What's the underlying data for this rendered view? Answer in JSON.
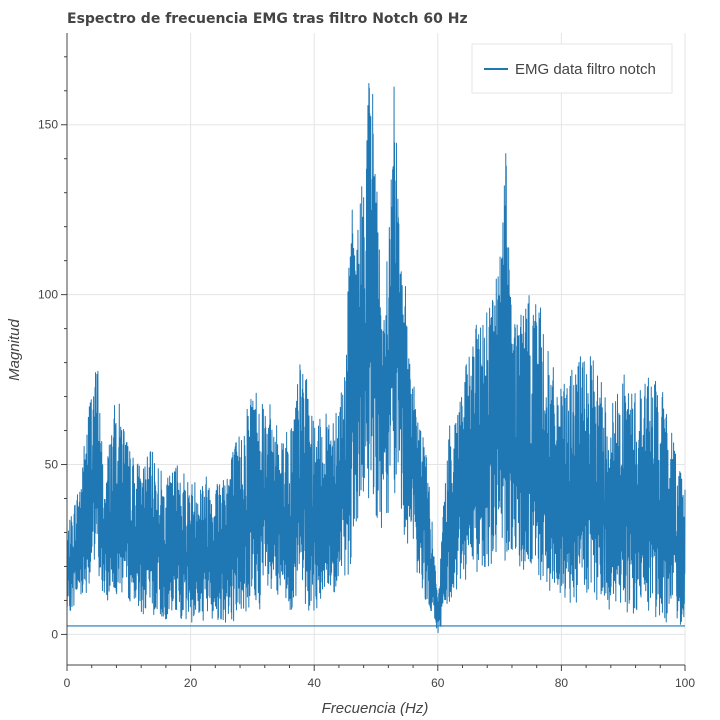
{
  "chart_data": {
    "type": "line",
    "title": "Espectro de frecuencia EMG tras filtro Notch 60 Hz",
    "xlabel": "Frecuencia (Hz)",
    "ylabel": "Magnitud",
    "xlim": [
      0,
      100
    ],
    "ylim": [
      -9,
      177
    ],
    "x_ticks": [
      0,
      20,
      40,
      60,
      80,
      100
    ],
    "y_ticks": [
      0,
      50,
      100,
      150
    ],
    "x_tick_labels": [
      "0",
      "20",
      "40",
      "60",
      "80",
      "100"
    ],
    "y_tick_labels": [
      "0",
      "50",
      "100",
      "150"
    ],
    "grid": true,
    "legend_position": "top-right",
    "series": [
      {
        "name": "EMG data filtro notch",
        "color": "#1f77b4",
        "x": [
          0,
          1,
          2,
          3,
          4,
          5,
          6,
          7,
          8,
          9,
          10,
          12,
          14,
          16,
          18,
          20,
          22,
          24,
          26,
          28,
          30,
          32,
          34,
          36,
          38,
          40,
          42,
          44,
          45,
          46,
          47,
          48,
          49,
          50,
          51,
          52,
          53,
          54,
          55,
          56,
          57,
          58,
          59,
          60,
          61,
          62,
          64,
          66,
          68,
          70,
          71,
          72,
          74,
          76,
          78,
          80,
          82,
          84,
          86,
          88,
          90,
          92,
          94,
          96,
          98,
          100
        ],
        "upper": [
          30,
          38,
          45,
          60,
          76,
          80,
          45,
          60,
          71,
          65,
          55,
          50,
          55,
          45,
          52,
          45,
          48,
          46,
          52,
          60,
          75,
          72,
          62,
          60,
          84,
          62,
          65,
          72,
          80,
          127,
          120,
          142,
          170,
          152,
          85,
          120,
          165,
          130,
          95,
          80,
          62,
          58,
          35,
          10,
          42,
          63,
          75,
          90,
          99,
          110,
          150,
          95,
          98,
          103,
          82,
          72,
          80,
          84,
          78,
          68,
          77,
          72,
          78,
          74,
          60,
          45
        ],
        "lower": [
          5,
          8,
          10,
          12,
          15,
          18,
          8,
          10,
          12,
          11,
          10,
          6,
          5,
          4,
          5,
          3,
          4,
          4,
          3,
          5,
          6,
          8,
          8,
          7,
          8,
          6,
          10,
          10,
          15,
          20,
          25,
          35,
          40,
          35,
          30,
          35,
          40,
          35,
          25,
          20,
          15,
          10,
          5,
          0,
          4,
          10,
          15,
          18,
          20,
          20,
          22,
          20,
          18,
          15,
          12,
          10,
          8,
          10,
          8,
          6,
          6,
          5,
          5,
          4,
          3,
          2
        ],
        "baseline": 2.5
      }
    ]
  }
}
